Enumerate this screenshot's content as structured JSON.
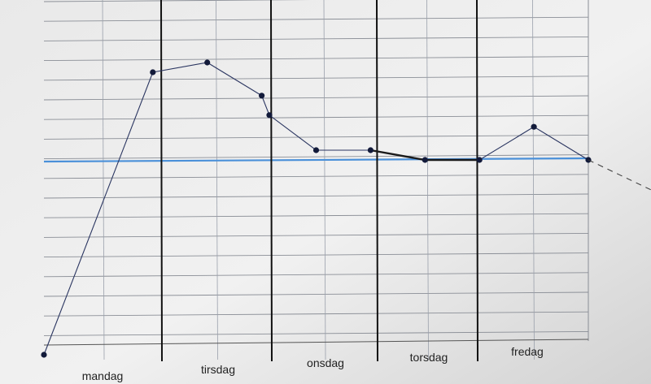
{
  "chart_data": {
    "type": "line",
    "categories": [
      "mandag",
      "tirsdag",
      "onsdag",
      "torsdag",
      "fredag"
    ],
    "reference_line": {
      "value": 0,
      "color": "#4a90d9"
    },
    "series": [
      {
        "color": "#2a3560",
        "points": [
          {
            "x": 0.0,
            "y": -10.0
          },
          {
            "x": 1.0,
            "y": 4.5
          },
          {
            "x": 1.5,
            "y": 5.0
          },
          {
            "x": 2.0,
            "y": 3.3
          },
          {
            "x": 2.07,
            "y": 2.3
          },
          {
            "x": 2.5,
            "y": 0.5
          },
          {
            "x": 3.0,
            "y": 0.5
          },
          {
            "x": 3.5,
            "y": 0.0
          },
          {
            "x": 4.0,
            "y": 0.0
          },
          {
            "x": 4.5,
            "y": 1.7
          },
          {
            "x": 5.0,
            "y": 0.0
          }
        ],
        "projection": {
          "to_x": 5.6,
          "to_y": -1.6
        }
      }
    ]
  }
}
